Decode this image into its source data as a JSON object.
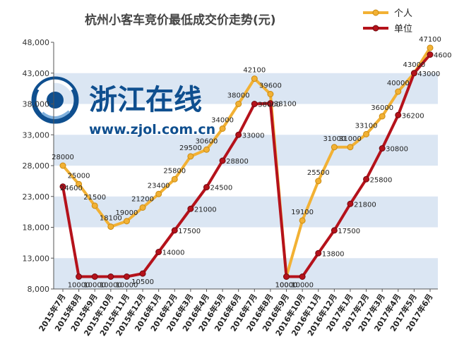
{
  "watermark": {
    "name_text": "浙江在线",
    "url_text": "www.zjol.com.cn"
  },
  "colors": {
    "individual": "#f2b134",
    "company": "#b5121b",
    "band": "#dbe6f3",
    "watermark": "#0f4f8f"
  },
  "chart_data": {
    "type": "line",
    "title": "杭州小客车竞价最低成交价走势(元)",
    "xlabel": "",
    "ylabel": "",
    "ylim": [
      8000,
      48000
    ],
    "yticks": [
      "8,000",
      "13,000",
      "18,000",
      "23,000",
      "28,000",
      "33,000",
      "38,000",
      "43,000",
      "48,000"
    ],
    "ytick_values": [
      8000,
      13000,
      18000,
      23000,
      28000,
      33000,
      38000,
      43000,
      48000
    ],
    "grid": "alternating horizontal bands",
    "legend_position": "top-right",
    "categories": [
      "2015年7月",
      "2015年8月",
      "2015年9月",
      "2015年10月",
      "2015年11月",
      "2015年12月",
      "2016年1月",
      "2016年2月",
      "2016年3月",
      "2016年4月",
      "2016年5月",
      "2016年6月",
      "2016年7月",
      "2016年8月",
      "2016年9月",
      "2016年10月",
      "2016年11月",
      "2016年12月",
      "2017年1月",
      "2017年2月",
      "2017年3月",
      "2017年4月",
      "2017年5月",
      "2017年6月"
    ],
    "series": [
      {
        "name": "个人",
        "values": [
          28000,
          25000,
          21500,
          18100,
          19000,
          21200,
          23400,
          25800,
          29500,
          30600,
          34000,
          38000,
          42100,
          39600,
          10000,
          19100,
          25500,
          31000,
          31000,
          33100,
          36000,
          40000,
          43000,
          47100
        ],
        "labels": [
          "28000",
          "25000",
          "21500",
          "18100",
          "19000",
          "21200",
          "23400",
          "25800",
          "29500",
          "30600",
          "34000",
          "38000",
          "42100",
          "39600",
          "10000",
          "19100",
          "25500",
          "31000",
          "31000",
          "33100",
          "36000",
          "40000",
          "43000",
          "47100"
        ]
      },
      {
        "name": "单位",
        "values": [
          24600,
          10000,
          10000,
          10000,
          10000,
          10500,
          14000,
          17500,
          21000,
          24500,
          28800,
          33000,
          38000,
          38100,
          10000,
          10000,
          13800,
          17500,
          21800,
          25800,
          30800,
          36200,
          43000,
          46000
        ],
        "labels": [
          "24600",
          "10000",
          "10000",
          "10000",
          "10000",
          "10500",
          "14000",
          "17500",
          "21000",
          "24500",
          "28800",
          "33000",
          "38000",
          "38100",
          "10000",
          "10000",
          "13800",
          "17500",
          "21800",
          "25800",
          "30800",
          "36200",
          "43000",
          "46000"
        ]
      }
    ]
  }
}
